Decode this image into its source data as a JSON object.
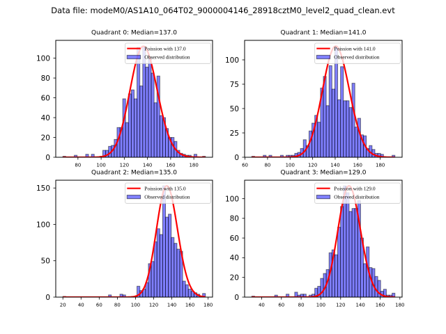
{
  "figure": {
    "suptitle": "Data file: modeM0/AS1A10_064T02_9000004146_28918cztM0_level2_quad_clean.evt"
  },
  "colors": {
    "bar_fill": "#0000ff",
    "bar_fill_alpha": 0.5,
    "bar_edge": "#000000",
    "bar_edge_alpha": 0.5,
    "curve": "#ff0000"
  },
  "chart_data": [
    {
      "type": "bar",
      "subtype": "histogram",
      "title": "Quadrant 0: Median=137.0",
      "median": 137.0,
      "poisson_lambda": 137.0,
      "legend": [
        "Poission with 137.0",
        "Observed distribution"
      ],
      "legend_loc": "upper right",
      "xlabel": "",
      "ylabel": "",
      "xlim": [
        60.85,
        196.15
      ],
      "ylim": [
        0,
        118
      ],
      "xticks": [
        80,
        100,
        120,
        140,
        160,
        180
      ],
      "yticks": [
        0,
        20,
        40,
        60,
        80,
        100
      ],
      "bin_range": [
        67,
        190
      ],
      "counts": [
        1,
        0,
        0,
        0,
        2,
        0,
        0,
        0,
        3,
        0,
        3,
        0,
        0,
        1,
        7,
        7,
        11,
        12,
        18,
        30,
        30,
        59,
        35,
        64,
        68,
        59,
        111,
        72,
        112,
        91,
        101,
        85,
        55,
        82,
        42,
        40,
        29,
        20,
        20,
        16,
        7,
        4,
        3,
        2,
        2,
        0,
        3,
        0,
        0,
        1
      ]
    },
    {
      "type": "bar",
      "subtype": "histogram",
      "title": "Quadrant 1: Median=141.0",
      "median": 141.0,
      "poisson_lambda": 141.0,
      "legend": [
        "Poission with 141.0",
        "Observed distribution"
      ],
      "legend_loc": "upper right",
      "xlabel": "",
      "ylabel": "",
      "xlim": [
        59.65,
        199.35
      ],
      "ylim": [
        0,
        120
      ],
      "xticks": [
        60,
        80,
        100,
        120,
        140,
        160,
        180
      ],
      "yticks": [
        0,
        25,
        50,
        75,
        100
      ],
      "bin_range": [
        66,
        193
      ],
      "counts": [
        1,
        0,
        0,
        0,
        2,
        0,
        2,
        0,
        0,
        0,
        2,
        0,
        2,
        2,
        2,
        4,
        5,
        9,
        18,
        12,
        27,
        35,
        43,
        36,
        71,
        83,
        53,
        94,
        70,
        114,
        59,
        93,
        58,
        58,
        51,
        76,
        31,
        40,
        23,
        22,
        9,
        12,
        8,
        4,
        4,
        3,
        0,
        0,
        0,
        2
      ]
    },
    {
      "type": "bar",
      "subtype": "histogram",
      "title": "Quadrant 2: Median=135.0",
      "median": 135.0,
      "poisson_lambda": 135.0,
      "legend": [
        "Poission with 135.0",
        "Observed distribution"
      ],
      "legend_loc": "upper right",
      "xlabel": "",
      "ylabel": "",
      "xlim": [
        12.15,
        184.85
      ],
      "ylim": [
        0,
        160.7
      ],
      "xticks": [
        20,
        40,
        60,
        80,
        100,
        120,
        140,
        160,
        180
      ],
      "yticks": [
        0,
        50,
        100,
        150
      ],
      "bin_range": [
        20,
        177
      ],
      "counts": [
        1,
        0,
        0,
        0,
        0,
        0,
        0,
        0,
        0,
        0,
        0,
        0,
        0,
        0,
        0,
        0,
        3,
        0,
        0,
        0,
        4,
        3,
        0,
        0,
        0,
        0,
        15,
        9,
        11,
        20,
        46,
        49,
        76,
        94,
        86,
        153,
        110,
        114,
        82,
        74,
        66,
        63,
        22,
        17,
        11,
        8,
        6,
        4,
        1,
        5
      ]
    },
    {
      "type": "bar",
      "subtype": "histogram",
      "title": "Quadrant 3: Median=129.0",
      "median": 129.0,
      "poisson_lambda": 129.0,
      "legend": [
        "Poission with 129.0",
        "Observed distribution"
      ],
      "legend_loc": "upper right",
      "xlabel": "",
      "ylabel": "",
      "xlim": [
        22.75,
        182.25
      ],
      "ylim": [
        0,
        118.7
      ],
      "xticks": [
        40,
        60,
        80,
        100,
        120,
        140,
        160,
        180
      ],
      "yticks": [
        0,
        20,
        40,
        60,
        80,
        100
      ],
      "bin_range": [
        30,
        175
      ],
      "counts": [
        1,
        0,
        0,
        0,
        0,
        0,
        0,
        0,
        2,
        0,
        0,
        0,
        3,
        0,
        0,
        5,
        2,
        3,
        3,
        0,
        2,
        3,
        9,
        11,
        19,
        24,
        28,
        45,
        48,
        43,
        71,
        92,
        113,
        106,
        87,
        90,
        90,
        98,
        60,
        34,
        51,
        30,
        29,
        21,
        17,
        6,
        8,
        2,
        2,
        4
      ]
    }
  ]
}
